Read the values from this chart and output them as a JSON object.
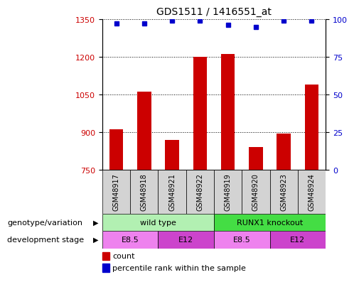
{
  "title": "GDS1511 / 1416551_at",
  "samples": [
    "GSM48917",
    "GSM48918",
    "GSM48921",
    "GSM48922",
    "GSM48919",
    "GSM48920",
    "GSM48923",
    "GSM48924"
  ],
  "counts": [
    910,
    1060,
    870,
    1200,
    1210,
    840,
    895,
    1090
  ],
  "percentiles": [
    97,
    97,
    99,
    99,
    96,
    95,
    99,
    99
  ],
  "ylim_left": [
    750,
    1350
  ],
  "ylim_right": [
    0,
    100
  ],
  "yticks_left": [
    750,
    900,
    1050,
    1200,
    1350
  ],
  "yticks_right": [
    0,
    25,
    50,
    75,
    100
  ],
  "bar_color": "#cc0000",
  "dot_color": "#0000cc",
  "bar_width": 0.5,
  "genotype_row": [
    {
      "label": "wild type",
      "span": [
        0,
        4
      ],
      "color": "#b2f0b2"
    },
    {
      "label": "RUNX1 knockout",
      "span": [
        4,
        8
      ],
      "color": "#44dd44"
    }
  ],
  "dev_stage_row": [
    {
      "label": "E8.5",
      "span": [
        0,
        2
      ],
      "color": "#ee82ee"
    },
    {
      "label": "E12",
      "span": [
        2,
        4
      ],
      "color": "#cc44cc"
    },
    {
      "label": "E8.5",
      "span": [
        4,
        6
      ],
      "color": "#ee82ee"
    },
    {
      "label": "E12",
      "span": [
        6,
        8
      ],
      "color": "#cc44cc"
    }
  ],
  "tick_label_color_left": "#cc0000",
  "tick_label_color_right": "#0000cc",
  "genotype_label": "genotype/variation",
  "dev_stage_label": "development stage",
  "legend_count": "count",
  "legend_percentile": "percentile rank within the sample",
  "sample_box_color": "#d3d3d3"
}
